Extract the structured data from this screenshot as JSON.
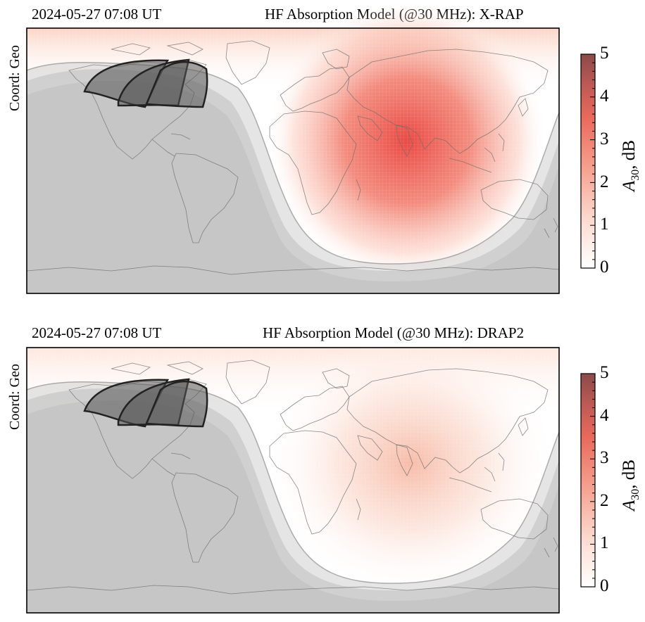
{
  "panels": [
    {
      "timestamp": "2024-05-27 07:08 UT",
      "title": "HF Absorption Model (@30 MHz): X-RAP",
      "coord_label": "Coord: Geo",
      "model": "X-RAP",
      "peak_intensity_dB": 3.6
    },
    {
      "timestamp": "2024-05-27 07:08 UT",
      "title": "HF Absorption Model (@30 MHz): DRAP2",
      "coord_label": "Coord: Geo",
      "model": "DRAP2",
      "peak_intensity_dB": 1.2
    }
  ],
  "colorbar": {
    "ticks": [
      "0",
      "1",
      "2",
      "3",
      "4",
      "5"
    ],
    "label_symbol": "A",
    "label_subscript": "30",
    "label_unit": ", dB",
    "range": [
      0,
      5
    ]
  },
  "colors": {
    "cmap_low": "#ffffff",
    "cmap_mid": "#f08070",
    "cmap_high": "#8b4a4a",
    "night": "#c9c9c9",
    "fov": "#555555"
  }
}
